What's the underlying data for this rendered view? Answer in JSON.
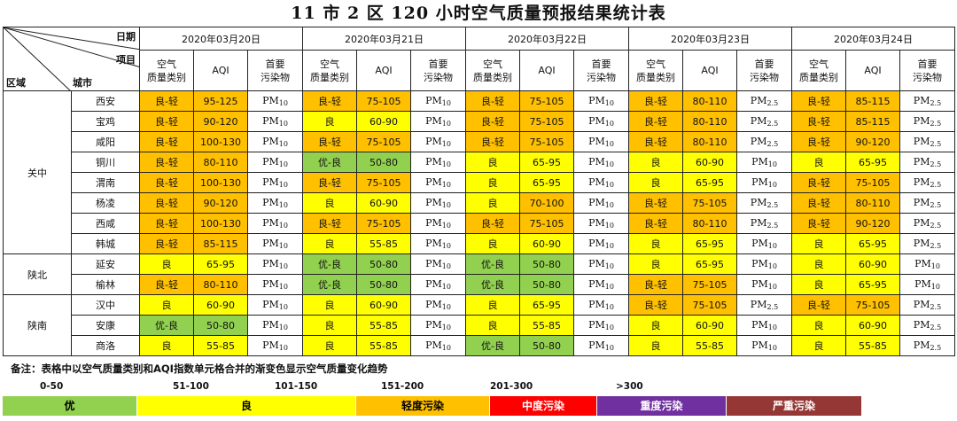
{
  "title": "11 市 2 区 120 小时空气质量预报结果统计表",
  "corner": {
    "date": "日期",
    "item": "项目",
    "region": "区域",
    "city": "城市"
  },
  "dates": [
    "2020年03月20日",
    "2020年03月21日",
    "2020年03月22日",
    "2020年03月23日",
    "2020年03月24日"
  ],
  "subheaders": {
    "category": "空气质量类别",
    "aqi": "AQI",
    "pollutant": "首要污染物"
  },
  "colors": {
    "优": "#92d050",
    "优-良": "#92d050",
    "良": "#ffff00",
    "良-轻": "#ffc000",
    "aqi_excellent": "#92d050",
    "aqi_good": "#ffff00",
    "aqi_light": "#ffc000"
  },
  "regions": [
    {
      "name": "关中",
      "rows": 8
    },
    {
      "name": "陕北",
      "rows": 2
    },
    {
      "name": "陕南",
      "rows": 3
    }
  ],
  "rows": [
    {
      "city": "西安",
      "days": [
        [
          "良-轻",
          "95-125",
          "10"
        ],
        [
          "良-轻",
          "75-105",
          "10"
        ],
        [
          "良-轻",
          "75-105",
          "10"
        ],
        [
          "良-轻",
          "80-110",
          "2.5"
        ],
        [
          "良-轻",
          "85-115",
          "2.5"
        ]
      ]
    },
    {
      "city": "宝鸡",
      "days": [
        [
          "良-轻",
          "90-120",
          "10"
        ],
        [
          "良",
          "60-90",
          "10"
        ],
        [
          "良-轻",
          "75-105",
          "10"
        ],
        [
          "良-轻",
          "80-110",
          "2.5"
        ],
        [
          "良-轻",
          "85-115",
          "2.5"
        ]
      ]
    },
    {
      "city": "咸阳",
      "days": [
        [
          "良-轻",
          "100-130",
          "10"
        ],
        [
          "良-轻",
          "75-105",
          "10"
        ],
        [
          "良-轻",
          "75-105",
          "10"
        ],
        [
          "良-轻",
          "80-110",
          "2.5"
        ],
        [
          "良-轻",
          "90-120",
          "2.5"
        ]
      ]
    },
    {
      "city": "铜川",
      "days": [
        [
          "良-轻",
          "80-110",
          "10"
        ],
        [
          "优-良",
          "50-80",
          "10"
        ],
        [
          "良",
          "65-95",
          "10"
        ],
        [
          "良",
          "60-90",
          "10"
        ],
        [
          "良",
          "65-95",
          "2.5"
        ]
      ]
    },
    {
      "city": "渭南",
      "days": [
        [
          "良-轻",
          "100-130",
          "10"
        ],
        [
          "良-轻",
          "75-105",
          "10"
        ],
        [
          "良",
          "65-95",
          "10"
        ],
        [
          "良",
          "65-95",
          "10"
        ],
        [
          "良-轻",
          "75-105",
          "2.5"
        ]
      ]
    },
    {
      "city": "杨凌",
      "days": [
        [
          "良-轻",
          "90-120",
          "10"
        ],
        [
          "良",
          "60-90",
          "10"
        ],
        [
          "良",
          "70-100",
          "10"
        ],
        [
          "良-轻",
          "75-105",
          "2.5"
        ],
        [
          "良-轻",
          "80-110",
          "2.5"
        ]
      ]
    },
    {
      "city": "西咸",
      "days": [
        [
          "良-轻",
          "100-130",
          "10"
        ],
        [
          "良-轻",
          "75-105",
          "10"
        ],
        [
          "良-轻",
          "75-105",
          "10"
        ],
        [
          "良-轻",
          "80-110",
          "2.5"
        ],
        [
          "良-轻",
          "90-120",
          "2.5"
        ]
      ]
    },
    {
      "city": "韩城",
      "days": [
        [
          "良-轻",
          "85-115",
          "10"
        ],
        [
          "良",
          "55-85",
          "10"
        ],
        [
          "良",
          "60-90",
          "10"
        ],
        [
          "良",
          "65-95",
          "10"
        ],
        [
          "良",
          "65-95",
          "2.5"
        ]
      ]
    },
    {
      "city": "延安",
      "days": [
        [
          "良",
          "65-95",
          "10"
        ],
        [
          "优-良",
          "50-80",
          "10"
        ],
        [
          "优-良",
          "50-80",
          "10"
        ],
        [
          "良",
          "65-95",
          "10"
        ],
        [
          "良",
          "60-90",
          "10"
        ]
      ]
    },
    {
      "city": "榆林",
      "days": [
        [
          "良-轻",
          "80-110",
          "10"
        ],
        [
          "优-良",
          "50-80",
          "10"
        ],
        [
          "优-良",
          "50-80",
          "10"
        ],
        [
          "良-轻",
          "75-105",
          "10"
        ],
        [
          "良",
          "65-95",
          "10"
        ]
      ]
    },
    {
      "city": "汉中",
      "days": [
        [
          "良",
          "60-90",
          "10"
        ],
        [
          "良",
          "60-90",
          "10"
        ],
        [
          "良",
          "65-95",
          "10"
        ],
        [
          "良-轻",
          "75-105",
          "2.5"
        ],
        [
          "良-轻",
          "75-105",
          "2.5"
        ]
      ]
    },
    {
      "city": "安康",
      "days": [
        [
          "优-良",
          "50-80",
          "10"
        ],
        [
          "良",
          "55-85",
          "10"
        ],
        [
          "良",
          "55-85",
          "10"
        ],
        [
          "良",
          "60-90",
          "10"
        ],
        [
          "良",
          "60-90",
          "2.5"
        ]
      ]
    },
    {
      "city": "商洛",
      "days": [
        [
          "良",
          "55-85",
          "10"
        ],
        [
          "良",
          "55-85",
          "10"
        ],
        [
          "优-良",
          "50-80",
          "10"
        ],
        [
          "良",
          "55-85",
          "10"
        ],
        [
          "良",
          "55-85",
          "2.5"
        ]
      ]
    }
  ],
  "aqi_colors": {
    "95-125": "#ffc000",
    "90-120": "#ffc000",
    "100-130": "#ffc000",
    "80-110": "#ffc000",
    "85-115": "#ffc000",
    "75-105": "#ffc000",
    "70-100": "#ffc000",
    "65-95": "#ffff00",
    "60-90": "#ffff00",
    "55-85": "#ffff00",
    "50-80": "#92d050"
  },
  "note": "备注：表格中以空气质量类别和AQI指数单元格合并的渐变色显示空气质量变化趋势",
  "scale": [
    "0-50",
    "51-100",
    "101-150",
    "151-200",
    "201-300",
    ">300"
  ],
  "legend": [
    {
      "label": "优",
      "color": "#92d050",
      "text_color": "#000000"
    },
    {
      "label": "良",
      "color": "#ffff00",
      "text_color": "#000000"
    },
    {
      "label": "轻度污染",
      "color": "#ffc000",
      "text_color": "#000000"
    },
    {
      "label": "中度污染",
      "color": "#ff0000",
      "text_color": "#ffffff"
    },
    {
      "label": "重度污染",
      "color": "#7030a0",
      "text_color": "#ffffff"
    },
    {
      "label": "严重污染",
      "color": "#953735",
      "text_color": "#ffffff"
    }
  ],
  "pm_prefix": "PM"
}
